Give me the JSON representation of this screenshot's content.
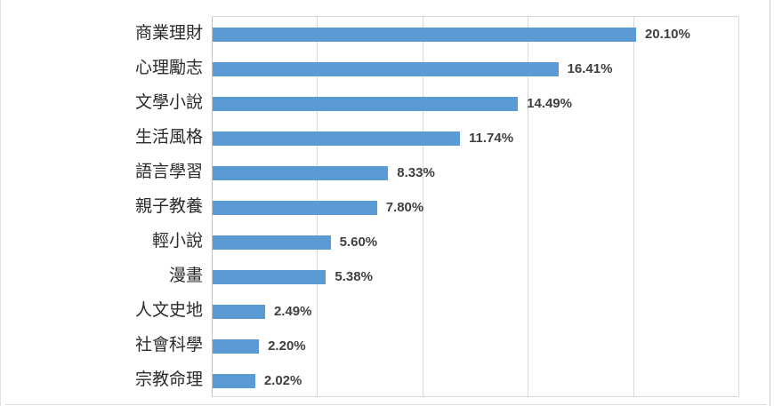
{
  "chart_data": {
    "type": "bar",
    "orientation": "horizontal",
    "title": "",
    "xlabel": "",
    "ylabel": "",
    "categories": [
      "商業理財",
      "心理勵志",
      "文學小說",
      "生活風格",
      "語言學習",
      "親子教養",
      "輕小說",
      "漫畫",
      "人文史地",
      "社會科學",
      "宗教命理"
    ],
    "values": [
      20.1,
      16.41,
      14.49,
      11.74,
      8.33,
      7.8,
      5.6,
      5.38,
      2.49,
      2.2,
      2.02
    ],
    "value_labels": [
      "20.10%",
      "16.41%",
      "14.49%",
      "11.74%",
      "8.33%",
      "7.80%",
      "5.60%",
      "5.38%",
      "2.49%",
      "2.20%",
      "2.02%"
    ],
    "xlim": [
      0,
      25
    ],
    "gridline_step": 5,
    "grid": true,
    "legend": "none",
    "axis_tick_labels_visible": false,
    "bar_color": "#5b9bd5",
    "value_label_color": "#404040",
    "category_label_color": "#2b2b2b",
    "gridline_color": "#d9d9d9"
  }
}
